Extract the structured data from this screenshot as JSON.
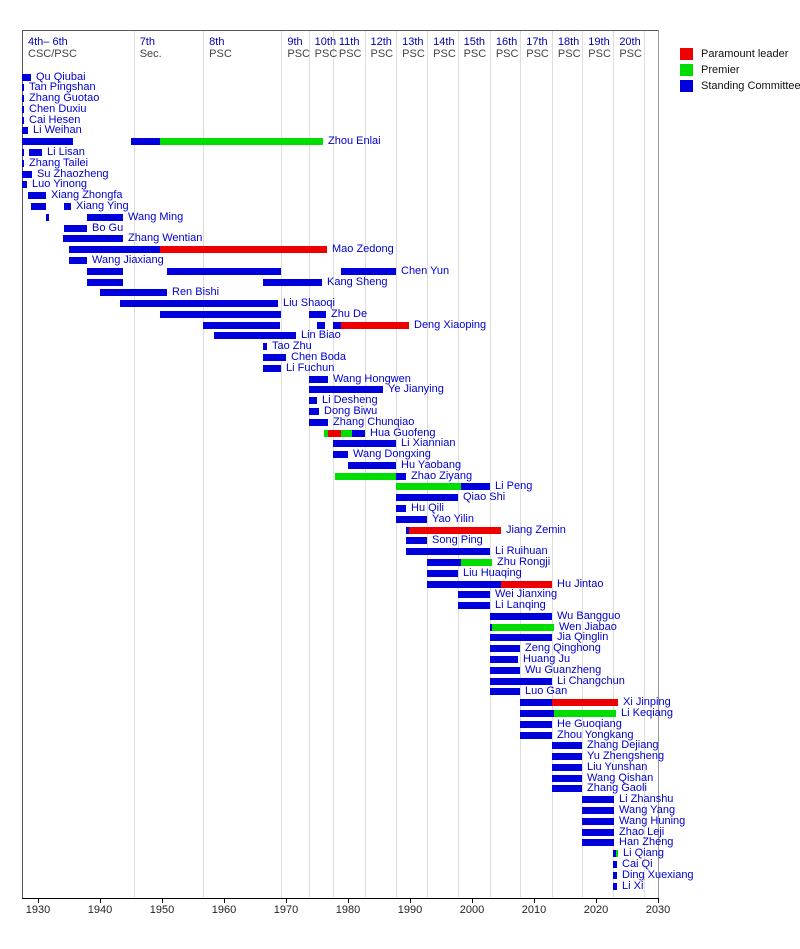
{
  "legend": {
    "items": [
      {
        "label": "Paramount leader",
        "role": "leader",
        "color": "#ee0000"
      },
      {
        "label": "Premier",
        "role": "premier",
        "color": "#00dd00"
      },
      {
        "label": "Standing Committee",
        "role": "psc",
        "color": "#0000dd"
      }
    ]
  },
  "chart_data": {
    "type": "bar",
    "variant": "gantt-timeline",
    "title": "",
    "xlabel": "",
    "ylabel": "",
    "grid": true,
    "legend_position": "top-right",
    "x_axis": {
      "range": [
        1927.5,
        2030
      ],
      "ticks": [
        1930,
        1940,
        1950,
        1960,
        1970,
        1980,
        1990,
        2000,
        2010,
        2020,
        2030
      ]
    },
    "role_colors": {
      "psc": "#0000dd",
      "premier": "#00dd00",
      "leader": "#ee0000"
    },
    "gridline_years": [
      1945.5,
      1956.7,
      1969.3,
      1973.7,
      1977.6,
      1982.7,
      1987.8,
      1992.8,
      1997.7,
      2002.9,
      2007.8,
      2012.9,
      2017.8,
      2022.8,
      2027.8
    ],
    "columns": [
      {
        "label": "4th– 6th",
        "sub": "CSC/PSC",
        "year": 1927.5
      },
      {
        "label": "7th",
        "sub": "Sec.",
        "year": 1945.5
      },
      {
        "label": "8th",
        "sub": "PSC",
        "year": 1956.7
      },
      {
        "label": "9th",
        "sub": "PSC",
        "year": 1969.3
      },
      {
        "label": "10th",
        "sub": "PSC",
        "year": 1973.7
      },
      {
        "label": "11th",
        "sub": "PSC",
        "year": 1977.6
      },
      {
        "label": "12th",
        "sub": "PSC",
        "year": 1982.7
      },
      {
        "label": "13th",
        "sub": "PSC",
        "year": 1987.8
      },
      {
        "label": "14th",
        "sub": "PSC",
        "year": 1992.8
      },
      {
        "label": "15th",
        "sub": "PSC",
        "year": 1997.7
      },
      {
        "label": "16th",
        "sub": "PSC",
        "year": 2002.9
      },
      {
        "label": "17th",
        "sub": "PSC",
        "year": 2007.8
      },
      {
        "label": "18th",
        "sub": "PSC",
        "year": 2012.9
      },
      {
        "label": "19th",
        "sub": "PSC",
        "year": 2017.8
      },
      {
        "label": "20th",
        "sub": "PSC",
        "year": 2022.8
      }
    ],
    "people": [
      {
        "name": "Qu Qiubai",
        "segments": [
          [
            1927.5,
            1929.0,
            "psc"
          ]
        ]
      },
      {
        "name": "Tan Pingshan",
        "segments": [
          [
            1927.5,
            1927.9,
            "psc"
          ]
        ]
      },
      {
        "name": "Zhang Guotao",
        "segments": [
          [
            1927.5,
            1927.9,
            "psc"
          ]
        ]
      },
      {
        "name": "Chen Duxiu",
        "segments": [
          [
            1927.5,
            1927.8,
            "psc"
          ]
        ]
      },
      {
        "name": "Cai Hesen",
        "segments": [
          [
            1927.5,
            1927.8,
            "psc"
          ]
        ]
      },
      {
        "name": "Li Weihan",
        "segments": [
          [
            1927.5,
            1928.5,
            "psc"
          ]
        ]
      },
      {
        "name": "Zhou Enlai",
        "segments": [
          [
            1927.5,
            1935.7,
            "psc"
          ],
          [
            1945.0,
            1949.8,
            "psc"
          ],
          [
            1949.8,
            1976.0,
            "premier"
          ]
        ]
      },
      {
        "name": "Li Lisan",
        "segments": [
          [
            1927.5,
            1927.8,
            "psc"
          ],
          [
            1928.6,
            1930.8,
            "psc"
          ]
        ]
      },
      {
        "name": "Zhang Tailei",
        "segments": [
          [
            1927.5,
            1927.9,
            "psc"
          ]
        ]
      },
      {
        "name": "Su Zhaozheng",
        "segments": [
          [
            1927.5,
            1929.1,
            "psc"
          ]
        ]
      },
      {
        "name": "Luo Yinong",
        "segments": [
          [
            1927.5,
            1928.3,
            "psc"
          ]
        ]
      },
      {
        "name": "Xiang Zhongfa",
        "segments": [
          [
            1928.5,
            1931.4,
            "psc"
          ]
        ]
      },
      {
        "name": "Xiang Ying",
        "segments": [
          [
            1928.9,
            1931.3,
            "psc"
          ],
          [
            1934.3,
            1935.4,
            "psc"
          ]
        ]
      },
      {
        "name": "Wang Ming",
        "segments": [
          [
            1931.3,
            1931.9,
            "psc"
          ],
          [
            1938.0,
            1943.7,
            "psc"
          ]
        ]
      },
      {
        "name": "Bo Gu",
        "segments": [
          [
            1934.3,
            1937.9,
            "psc"
          ]
        ]
      },
      {
        "name": "Zhang Wentian",
        "segments": [
          [
            1934.1,
            1943.7,
            "psc"
          ]
        ]
      },
      {
        "name": "Mao Zedong",
        "segments": [
          [
            1935.1,
            1949.8,
            "psc"
          ],
          [
            1949.8,
            1976.7,
            "leader"
          ]
        ]
      },
      {
        "name": "Wang Jiaxiang",
        "segments": [
          [
            1935.1,
            1937.9,
            "psc"
          ]
        ]
      },
      {
        "name": "Chen Yun",
        "segments": [
          [
            1938.0,
            1943.7,
            "psc"
          ],
          [
            1950.8,
            1969.3,
            "psc"
          ],
          [
            1978.9,
            1987.8,
            "psc"
          ]
        ]
      },
      {
        "name": "Kang Sheng",
        "segments": [
          [
            1938.0,
            1943.7,
            "psc"
          ],
          [
            1966.4,
            1975.9,
            "psc"
          ]
        ]
      },
      {
        "name": "Ren Bishi",
        "segments": [
          [
            1940.0,
            1950.8,
            "psc"
          ]
        ]
      },
      {
        "name": "Liu Shaoqi",
        "segments": [
          [
            1943.3,
            1968.8,
            "psc"
          ]
        ]
      },
      {
        "name": "Zhu De",
        "segments": [
          [
            1949.8,
            1969.3,
            "psc"
          ],
          [
            1973.7,
            1976.5,
            "psc"
          ]
        ]
      },
      {
        "name": "Deng Xiaoping",
        "segments": [
          [
            1956.7,
            1969.0,
            "psc"
          ],
          [
            1975.0,
            1976.3,
            "psc"
          ],
          [
            1977.6,
            1978.9,
            "psc"
          ],
          [
            1978.9,
            1989.9,
            "leader"
          ]
        ]
      },
      {
        "name": "Lin Biao",
        "segments": [
          [
            1958.4,
            1971.7,
            "psc"
          ]
        ]
      },
      {
        "name": "Tao Zhu",
        "segments": [
          [
            1966.4,
            1967.0,
            "psc"
          ]
        ]
      },
      {
        "name": "Chen Boda",
        "segments": [
          [
            1966.4,
            1970.0,
            "psc"
          ]
        ]
      },
      {
        "name": "Li Fuchun",
        "segments": [
          [
            1966.4,
            1969.3,
            "psc"
          ]
        ]
      },
      {
        "name": "Wang Hongwen",
        "segments": [
          [
            1973.7,
            1976.8,
            "psc"
          ]
        ]
      },
      {
        "name": "Ye Jianying",
        "segments": [
          [
            1973.7,
            1985.7,
            "psc"
          ]
        ]
      },
      {
        "name": "Li Desheng",
        "segments": [
          [
            1973.7,
            1975.0,
            "psc"
          ]
        ]
      },
      {
        "name": "Dong Biwu",
        "segments": [
          [
            1973.7,
            1975.3,
            "psc"
          ]
        ]
      },
      {
        "name": "Zhang Chunqiao",
        "segments": [
          [
            1973.7,
            1976.8,
            "psc"
          ]
        ]
      },
      {
        "name": "Hua Guofeng",
        "segments": [
          [
            1976.1,
            1976.8,
            "premier"
          ],
          [
            1976.8,
            1978.9,
            "leader"
          ],
          [
            1978.9,
            1980.7,
            "premier"
          ],
          [
            1980.7,
            1982.7,
            "psc"
          ]
        ]
      },
      {
        "name": "Li Xiannian",
        "segments": [
          [
            1977.6,
            1987.8,
            "psc"
          ]
        ]
      },
      {
        "name": "Wang Dongxing",
        "segments": [
          [
            1977.6,
            1980.1,
            "psc"
          ]
        ]
      },
      {
        "name": "Hu Yaobang",
        "segments": [
          [
            1980.1,
            1987.8,
            "psc"
          ]
        ]
      },
      {
        "name": "Zhao Ziyang",
        "segments": [
          [
            1978.0,
            1987.8,
            "premier"
          ],
          [
            1987.8,
            1989.4,
            "psc"
          ]
        ]
      },
      {
        "name": "Li Peng",
        "segments": [
          [
            1987.8,
            1998.2,
            "premier"
          ],
          [
            1998.2,
            2002.9,
            "psc"
          ]
        ]
      },
      {
        "name": "Qiao Shi",
        "segments": [
          [
            1987.8,
            1997.7,
            "psc"
          ]
        ]
      },
      {
        "name": "Hu Qili",
        "segments": [
          [
            1987.8,
            1989.4,
            "psc"
          ]
        ]
      },
      {
        "name": "Yao Yilin",
        "segments": [
          [
            1987.8,
            1992.8,
            "psc"
          ]
        ]
      },
      {
        "name": "Jiang Zemin",
        "segments": [
          [
            1989.4,
            1989.9,
            "psc"
          ],
          [
            1989.9,
            2004.7,
            "leader"
          ]
        ]
      },
      {
        "name": "Song Ping",
        "segments": [
          [
            1989.4,
            1992.8,
            "psc"
          ]
        ]
      },
      {
        "name": "Li Ruihuan",
        "segments": [
          [
            1989.4,
            2002.9,
            "psc"
          ]
        ]
      },
      {
        "name": "Zhu Rongji",
        "segments": [
          [
            1992.8,
            1998.2,
            "psc"
          ],
          [
            1998.2,
            2003.2,
            "premier"
          ]
        ]
      },
      {
        "name": "Liu Huaqing",
        "segments": [
          [
            1992.8,
            1997.7,
            "psc"
          ]
        ]
      },
      {
        "name": "Hu Jintao",
        "segments": [
          [
            1992.8,
            2004.7,
            "psc"
          ],
          [
            2004.7,
            2012.9,
            "leader"
          ]
        ]
      },
      {
        "name": "Wei Jianxing",
        "segments": [
          [
            1997.7,
            2002.9,
            "psc"
          ]
        ]
      },
      {
        "name": "Li Lanqing",
        "segments": [
          [
            1997.7,
            2002.9,
            "psc"
          ]
        ]
      },
      {
        "name": "Wu Bangguo",
        "segments": [
          [
            2002.9,
            2012.9,
            "psc"
          ]
        ]
      },
      {
        "name": "Wen Jiabao",
        "segments": [
          [
            2002.9,
            2003.2,
            "psc"
          ],
          [
            2003.2,
            2013.2,
            "premier"
          ]
        ]
      },
      {
        "name": "Jia Qinglin",
        "segments": [
          [
            2002.9,
            2012.9,
            "psc"
          ]
        ]
      },
      {
        "name": "Zeng Qinghong",
        "segments": [
          [
            2002.9,
            2007.8,
            "psc"
          ]
        ]
      },
      {
        "name": "Huang Ju",
        "segments": [
          [
            2002.9,
            2007.4,
            "psc"
          ]
        ]
      },
      {
        "name": "Wu Guanzheng",
        "segments": [
          [
            2002.9,
            2007.8,
            "psc"
          ]
        ]
      },
      {
        "name": "Li Changchun",
        "segments": [
          [
            2002.9,
            2012.9,
            "psc"
          ]
        ]
      },
      {
        "name": "Luo Gan",
        "segments": [
          [
            2002.9,
            2007.8,
            "psc"
          ]
        ]
      },
      {
        "name": "Xi Jinping",
        "segments": [
          [
            2007.8,
            2012.9,
            "psc"
          ],
          [
            2012.9,
            2023.5,
            "leader"
          ]
        ]
      },
      {
        "name": "Li Keqiang",
        "segments": [
          [
            2007.8,
            2013.2,
            "psc"
          ],
          [
            2013.2,
            2023.2,
            "premier"
          ]
        ]
      },
      {
        "name": "He Guoqiang",
        "segments": [
          [
            2007.8,
            2012.9,
            "psc"
          ]
        ]
      },
      {
        "name": "Zhou Yongkang",
        "segments": [
          [
            2007.8,
            2012.9,
            "psc"
          ]
        ]
      },
      {
        "name": "Zhang Dejiang",
        "segments": [
          [
            2012.9,
            2017.8,
            "psc"
          ]
        ]
      },
      {
        "name": "Yu Zhengsheng",
        "segments": [
          [
            2012.9,
            2017.8,
            "psc"
          ]
        ]
      },
      {
        "name": "Liu Yunshan",
        "segments": [
          [
            2012.9,
            2017.8,
            "psc"
          ]
        ]
      },
      {
        "name": "Wang Qishan",
        "segments": [
          [
            2012.9,
            2017.8,
            "psc"
          ]
        ]
      },
      {
        "name": "Zhang Gaoli",
        "segments": [
          [
            2012.9,
            2017.8,
            "psc"
          ]
        ]
      },
      {
        "name": "Li Zhanshu",
        "segments": [
          [
            2017.8,
            2022.9,
            "psc"
          ]
        ]
      },
      {
        "name": "Wang Yang",
        "segments": [
          [
            2017.8,
            2022.9,
            "psc"
          ]
        ]
      },
      {
        "name": "Wang Huning",
        "segments": [
          [
            2017.8,
            2022.9,
            "psc"
          ]
        ]
      },
      {
        "name": "Zhao Leji",
        "segments": [
          [
            2017.8,
            2022.9,
            "psc"
          ]
        ]
      },
      {
        "name": "Han Zheng",
        "segments": [
          [
            2017.8,
            2022.9,
            "psc"
          ]
        ]
      },
      {
        "name": "Li Qiang",
        "segments": [
          [
            2022.8,
            2023.2,
            "psc"
          ],
          [
            2023.2,
            2023.5,
            "premier"
          ]
        ]
      },
      {
        "name": "Cai Qi",
        "segments": [
          [
            2022.8,
            2023.4,
            "psc"
          ]
        ]
      },
      {
        "name": "Ding Xuexiang",
        "segments": [
          [
            2022.8,
            2023.4,
            "psc"
          ]
        ]
      },
      {
        "name": "Li Xi",
        "segments": [
          [
            2022.8,
            2023.4,
            "psc"
          ]
        ]
      }
    ]
  }
}
